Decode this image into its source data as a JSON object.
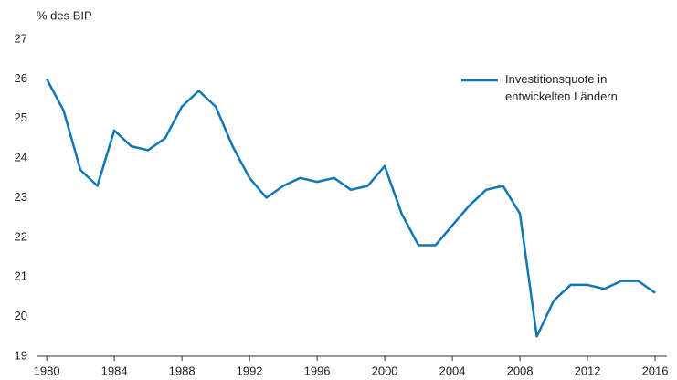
{
  "chart_data": {
    "type": "line",
    "y_label": "% des BIP",
    "x": [
      1980,
      1981,
      1982,
      1983,
      1984,
      1985,
      1986,
      1987,
      1988,
      1989,
      1990,
      1991,
      1992,
      1993,
      1994,
      1995,
      1996,
      1997,
      1998,
      1999,
      2000,
      2001,
      2002,
      2003,
      2004,
      2005,
      2006,
      2007,
      2008,
      2009,
      2010,
      2011,
      2012,
      2013,
      2014,
      2015,
      2016
    ],
    "series": [
      {
        "name": "Investitionsquote in entwickelten Ländern",
        "color": "#0f76b8",
        "values": [
          26.0,
          25.2,
          23.7,
          23.3,
          24.7,
          24.3,
          24.2,
          24.5,
          25.3,
          25.7,
          25.3,
          24.3,
          23.5,
          23.0,
          23.3,
          23.5,
          23.4,
          23.5,
          23.2,
          23.3,
          23.8,
          22.6,
          21.8,
          21.8,
          22.3,
          22.8,
          23.2,
          23.3,
          22.6,
          19.5,
          20.4,
          20.8,
          20.8,
          20.7,
          20.9,
          20.9,
          20.6
        ]
      }
    ],
    "xlim": [
      1979.4,
      2016.7
    ],
    "xticks": [
      1980,
      1984,
      1988,
      1992,
      1996,
      2000,
      2004,
      2008,
      2012,
      2016
    ],
    "ylim": [
      19,
      27
    ],
    "yticks": [
      19,
      20,
      21,
      22,
      23,
      24,
      25,
      26,
      27
    ],
    "legend": "top-right"
  }
}
